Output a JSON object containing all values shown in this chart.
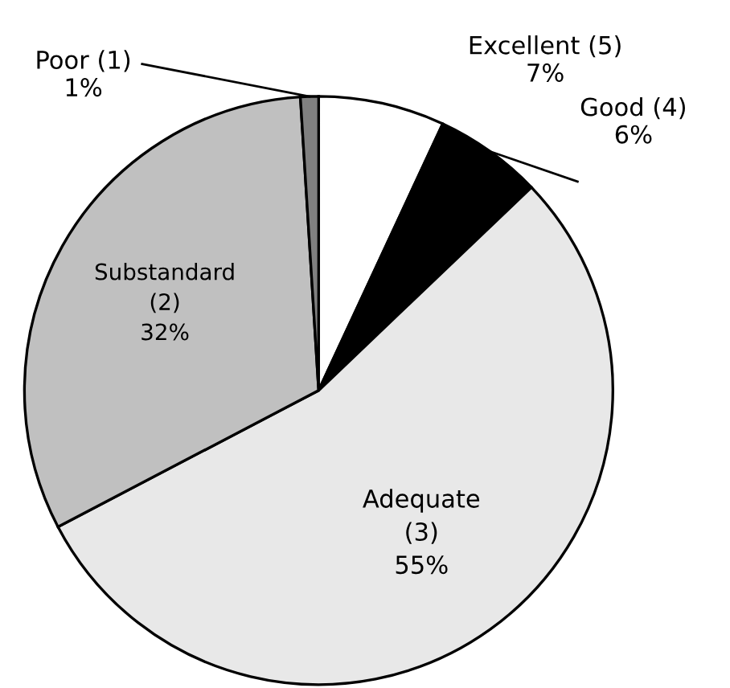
{
  "chart_data": {
    "type": "pie",
    "categories": [
      "Excellent (5)",
      "Good (4)",
      "Adequate (3)",
      "Substandard (2)",
      "Poor (1)"
    ],
    "values": [
      7,
      6,
      55,
      32,
      1
    ],
    "colors": [
      "#ffffff",
      "#000000",
      "#e8e8e8",
      "#c0c0c0",
      "#808080"
    ],
    "value_labels": [
      "7%",
      "6%",
      "55%",
      "32%",
      "1%"
    ]
  }
}
